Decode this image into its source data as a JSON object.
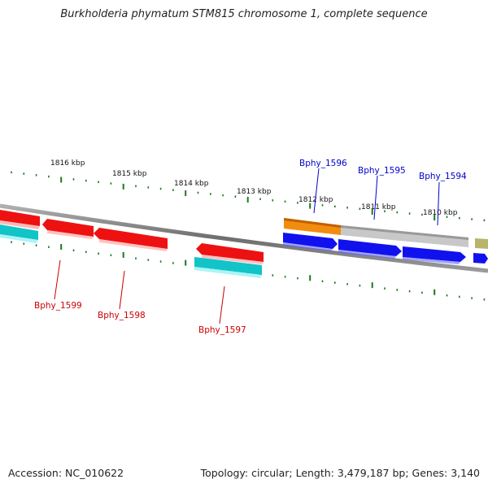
{
  "title": "Burkholderia phymatum STM815 chromosome 1, complete sequence",
  "footer": {
    "accession": "Accession: NC_010622",
    "summary": "Topology: circular; Length: 3,479,187 bp; Genes: 3,140"
  },
  "colors": {
    "red_gene": "#ee1111",
    "cyan_gene": "#11c4c8",
    "blue_gene": "#1111ee",
    "orange_gene": "#f28c0f",
    "gray_gene": "#c8c8c8",
    "olive_gene": "#b8b46a",
    "ticks": "#1a7a1a",
    "backbone": "#808080",
    "label_red": "#cc0000",
    "label_blue": "#0000cc"
  },
  "scale_labels": [
    "1816 kbp",
    "1815 kbp",
    "1814 kbp",
    "1813 kbp",
    "1812 kbp",
    "1811 kbp",
    "1810 kbp"
  ],
  "gene_labels": {
    "bphy_1599": "Bphy_1599",
    "bphy_1598": "Bphy_1598",
    "bphy_1597": "Bphy_1597",
    "bphy_1596": "Bphy_1596",
    "bphy_1595": "Bphy_1595",
    "bphy_1594": "Bphy_1594"
  }
}
